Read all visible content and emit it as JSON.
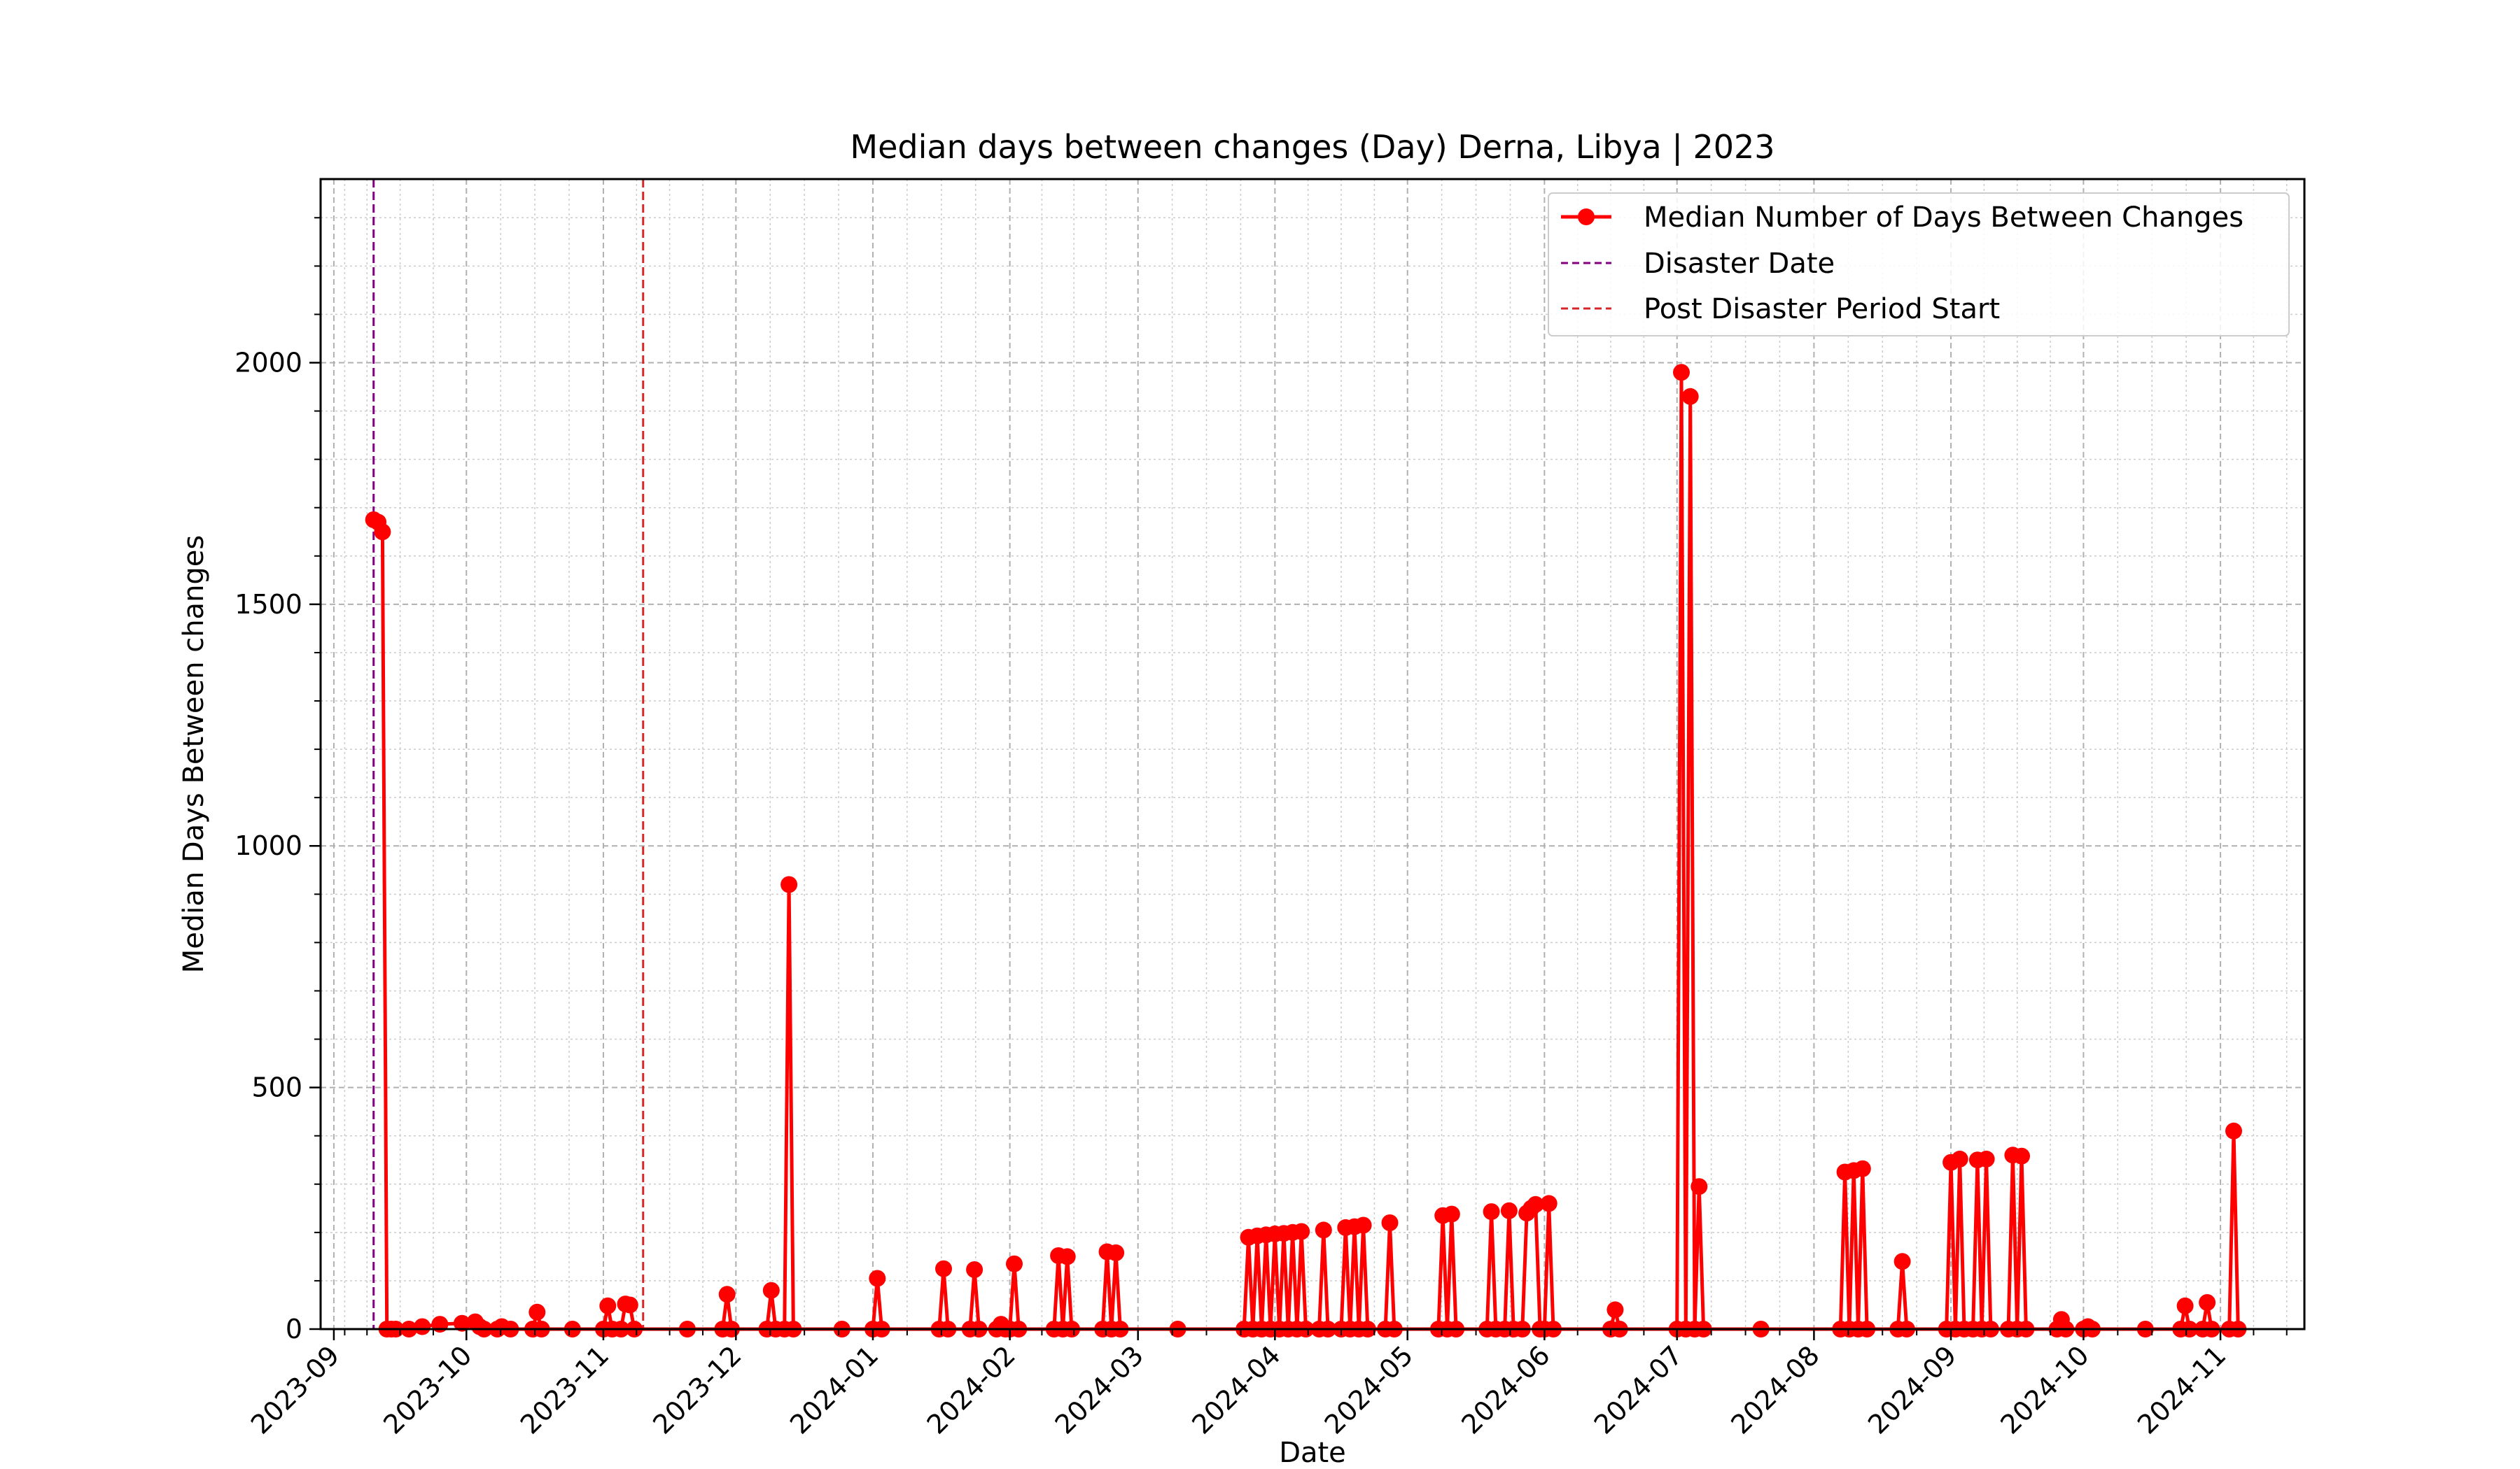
{
  "chart_data": {
    "type": "line",
    "title": "Median days between changes (Day) Derna, Libya | 2023",
    "xlabel": "Date",
    "ylabel": "Median Days Between changes",
    "xlim": [
      "2023-08-29",
      "2024-11-20"
    ],
    "ylim": [
      0,
      2380
    ],
    "x_ticks": [
      "2023-09-01",
      "2023-10-01",
      "2023-11-01",
      "2023-12-01",
      "2024-01-01",
      "2024-02-01",
      "2024-03-01",
      "2024-04-01",
      "2024-05-01",
      "2024-06-01",
      "2024-07-01",
      "2024-08-01",
      "2024-09-01",
      "2024-10-01",
      "2024-11-01"
    ],
    "x_tick_labels": [
      "2023-09",
      "2023-10",
      "2023-11",
      "2023-12",
      "2024-01",
      "2024-02",
      "2024-03",
      "2024-04",
      "2024-05",
      "2024-06",
      "2024-07",
      "2024-08",
      "2024-09",
      "2024-10",
      "2024-11"
    ],
    "y_ticks": [
      0,
      500,
      1000,
      1500,
      2000
    ],
    "y_tick_labels": [
      "0",
      "500",
      "1000",
      "1500",
      "2000"
    ],
    "grid": true,
    "legend_position": "top-right",
    "series": [
      {
        "name": "Median Number of Days Between Changes",
        "color": "#ff0000",
        "marker": "circle",
        "points": [
          [
            "2023-09-10",
            1675
          ],
          [
            "2023-09-11",
            1670
          ],
          [
            "2023-09-12",
            1650
          ],
          [
            "2023-09-13",
            0
          ],
          [
            "2023-09-14",
            0
          ],
          [
            "2023-09-15",
            0
          ],
          [
            "2023-09-18",
            0
          ],
          [
            "2023-09-21",
            5
          ],
          [
            "2023-09-25",
            10
          ],
          [
            "2023-09-30",
            12
          ],
          [
            "2023-10-03",
            15
          ],
          [
            "2023-10-04",
            5
          ],
          [
            "2023-10-05",
            0
          ],
          [
            "2023-10-08",
            0
          ],
          [
            "2023-10-09",
            5
          ],
          [
            "2023-10-11",
            0
          ],
          [
            "2023-10-16",
            0
          ],
          [
            "2023-10-17",
            35
          ],
          [
            "2023-10-18",
            0
          ],
          [
            "2023-10-25",
            0
          ],
          [
            "2023-11-01",
            0
          ],
          [
            "2023-11-02",
            48
          ],
          [
            "2023-11-03",
            0
          ],
          [
            "2023-11-05",
            0
          ],
          [
            "2023-11-06",
            52
          ],
          [
            "2023-11-07",
            50
          ],
          [
            "2023-11-08",
            0
          ],
          [
            "2023-11-20",
            0
          ],
          [
            "2023-11-28",
            0
          ],
          [
            "2023-11-29",
            72
          ],
          [
            "2023-11-30",
            0
          ],
          [
            "2023-12-08",
            0
          ],
          [
            "2023-12-09",
            80
          ],
          [
            "2023-12-10",
            0
          ],
          [
            "2023-12-12",
            0
          ],
          [
            "2023-12-13",
            920
          ],
          [
            "2023-12-14",
            0
          ],
          [
            "2023-12-25",
            0
          ],
          [
            "2024-01-01",
            0
          ],
          [
            "2024-01-02",
            105
          ],
          [
            "2024-01-03",
            0
          ],
          [
            "2024-01-16",
            0
          ],
          [
            "2024-01-17",
            125
          ],
          [
            "2024-01-18",
            0
          ],
          [
            "2024-01-23",
            0
          ],
          [
            "2024-01-24",
            123
          ],
          [
            "2024-01-25",
            0
          ],
          [
            "2024-01-29",
            0
          ],
          [
            "2024-01-30",
            10
          ],
          [
            "2024-01-31",
            0
          ],
          [
            "2024-02-01",
            0
          ],
          [
            "2024-02-02",
            135
          ],
          [
            "2024-02-03",
            0
          ],
          [
            "2024-02-11",
            0
          ],
          [
            "2024-02-12",
            152
          ],
          [
            "2024-02-13",
            0
          ],
          [
            "2024-02-14",
            150
          ],
          [
            "2024-02-15",
            0
          ],
          [
            "2024-02-22",
            0
          ],
          [
            "2024-02-23",
            160
          ],
          [
            "2024-02-24",
            0
          ],
          [
            "2024-02-25",
            158
          ],
          [
            "2024-02-26",
            0
          ],
          [
            "2024-03-10",
            0
          ],
          [
            "2024-03-25",
            0
          ],
          [
            "2024-03-26",
            190
          ],
          [
            "2024-03-27",
            0
          ],
          [
            "2024-03-28",
            193
          ],
          [
            "2024-03-29",
            0
          ],
          [
            "2024-03-30",
            195
          ],
          [
            "2024-03-31",
            0
          ],
          [
            "2024-04-01",
            197
          ],
          [
            "2024-04-02",
            0
          ],
          [
            "2024-04-03",
            198
          ],
          [
            "2024-04-04",
            0
          ],
          [
            "2024-04-05",
            200
          ],
          [
            "2024-04-06",
            0
          ],
          [
            "2024-04-07",
            202
          ],
          [
            "2024-04-08",
            0
          ],
          [
            "2024-04-11",
            0
          ],
          [
            "2024-04-12",
            205
          ],
          [
            "2024-04-13",
            0
          ],
          [
            "2024-04-16",
            0
          ],
          [
            "2024-04-17",
            210
          ],
          [
            "2024-04-18",
            0
          ],
          [
            "2024-04-19",
            212
          ],
          [
            "2024-04-20",
            0
          ],
          [
            "2024-04-21",
            215
          ],
          [
            "2024-04-22",
            0
          ],
          [
            "2024-04-26",
            0
          ],
          [
            "2024-04-27",
            220
          ],
          [
            "2024-04-28",
            0
          ],
          [
            "2024-05-08",
            0
          ],
          [
            "2024-05-09",
            235
          ],
          [
            "2024-05-10",
            0
          ],
          [
            "2024-05-11",
            238
          ],
          [
            "2024-05-12",
            0
          ],
          [
            "2024-05-19",
            0
          ],
          [
            "2024-05-20",
            243
          ],
          [
            "2024-05-21",
            0
          ],
          [
            "2024-05-23",
            0
          ],
          [
            "2024-05-24",
            245
          ],
          [
            "2024-05-25",
            0
          ],
          [
            "2024-05-27",
            0
          ],
          [
            "2024-05-28",
            240
          ],
          [
            "2024-05-29",
            250
          ],
          [
            "2024-05-30",
            258
          ],
          [
            "2024-05-31",
            0
          ],
          [
            "2024-06-01",
            0
          ],
          [
            "2024-06-02",
            260
          ],
          [
            "2024-06-03",
            0
          ],
          [
            "2024-06-16",
            0
          ],
          [
            "2024-06-17",
            40
          ],
          [
            "2024-06-18",
            0
          ],
          [
            "2024-07-01",
            0
          ],
          [
            "2024-07-02",
            1980
          ],
          [
            "2024-07-03",
            0
          ],
          [
            "2024-07-04",
            1930
          ],
          [
            "2024-07-05",
            0
          ],
          [
            "2024-07-06",
            295
          ],
          [
            "2024-07-07",
            0
          ],
          [
            "2024-07-20",
            0
          ],
          [
            "2024-08-07",
            0
          ],
          [
            "2024-08-08",
            325
          ],
          [
            "2024-08-09",
            0
          ],
          [
            "2024-08-10",
            328
          ],
          [
            "2024-08-11",
            0
          ],
          [
            "2024-08-12",
            332
          ],
          [
            "2024-08-13",
            0
          ],
          [
            "2024-08-20",
            0
          ],
          [
            "2024-08-21",
            140
          ],
          [
            "2024-08-22",
            0
          ],
          [
            "2024-08-31",
            0
          ],
          [
            "2024-09-01",
            345
          ],
          [
            "2024-09-02",
            0
          ],
          [
            "2024-09-03",
            352
          ],
          [
            "2024-09-04",
            0
          ],
          [
            "2024-09-06",
            0
          ],
          [
            "2024-09-07",
            350
          ],
          [
            "2024-09-08",
            0
          ],
          [
            "2024-09-09",
            352
          ],
          [
            "2024-09-10",
            0
          ],
          [
            "2024-09-14",
            0
          ],
          [
            "2024-09-15",
            360
          ],
          [
            "2024-09-16",
            0
          ],
          [
            "2024-09-17",
            358
          ],
          [
            "2024-09-18",
            0
          ],
          [
            "2024-09-25",
            0
          ],
          [
            "2024-09-26",
            20
          ],
          [
            "2024-09-27",
            0
          ],
          [
            "2024-10-01",
            0
          ],
          [
            "2024-10-02",
            5
          ],
          [
            "2024-10-03",
            0
          ],
          [
            "2024-10-15",
            0
          ],
          [
            "2024-10-23",
            0
          ],
          [
            "2024-10-24",
            48
          ],
          [
            "2024-10-25",
            0
          ],
          [
            "2024-10-28",
            0
          ],
          [
            "2024-10-29",
            55
          ],
          [
            "2024-10-30",
            0
          ],
          [
            "2024-11-03",
            0
          ],
          [
            "2024-11-04",
            410
          ],
          [
            "2024-11-05",
            0
          ]
        ]
      }
    ],
    "reference_lines": [
      {
        "name": "Disaster Date",
        "x": "2023-09-10",
        "color": "#800080",
        "style": "dashed"
      },
      {
        "name": "Post Disaster Period Start",
        "x": "2023-11-10",
        "color": "#d62728",
        "style": "dashed"
      }
    ]
  }
}
